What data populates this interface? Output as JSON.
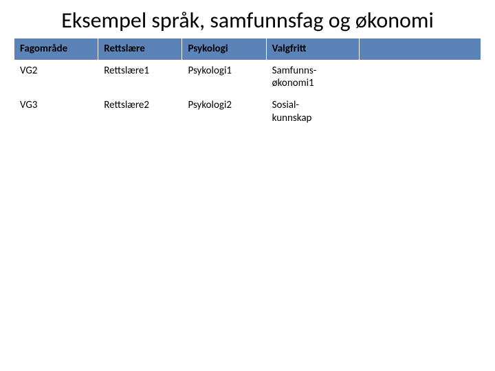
{
  "title": "Eksempel språk, samfunnsfag og økonomi",
  "table": {
    "type": "table",
    "columns": [
      "Fagområde",
      "Rettslære",
      "Psykologi",
      "Valgfritt",
      ""
    ],
    "rows": [
      [
        "VG2",
        "Rettslære1",
        "Psykologi1",
        "Samfunns-økonomi1",
        ""
      ],
      [
        "VG3",
        "Rettslære2",
        "Psykologi2",
        "Sosial-kunnskap",
        ""
      ]
    ],
    "header_bg": "#5b83b8",
    "header_text_color": "#000000",
    "cell_bg": "#ffffff",
    "cell_text_color": "#000000",
    "border_color": "#ffffff",
    "title_fontsize": 32,
    "cell_fontsize": 15,
    "column_widths_pct": [
      18,
      18,
      18,
      20,
      26
    ]
  },
  "background_color": "#ffffff"
}
